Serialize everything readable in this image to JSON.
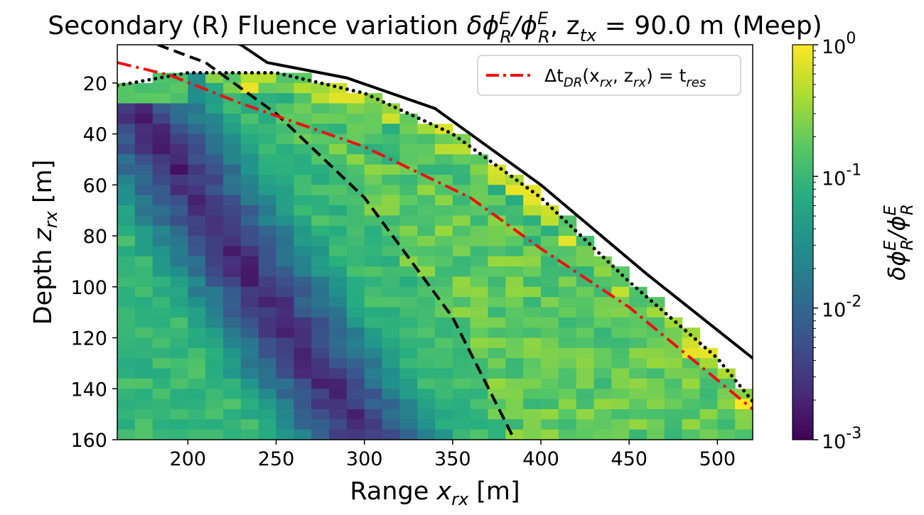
{
  "chart_data": {
    "type": "heatmap",
    "title": {
      "prefix": "Secondary (R) Fluence variation ",
      "math": "δϕ",
      "sup": "E",
      "sub": "R",
      "slash": "/ϕ",
      "mid": ", z",
      "mid_sub": "tx",
      "suffix": " = 90.0 m (Meep)"
    },
    "xlabel": {
      "text": "Range ",
      "var": "x",
      "sub": "rx",
      "unit": " [m]"
    },
    "ylabel": {
      "text": "Depth ",
      "var": "z",
      "sub": "rx",
      "unit": " [m]"
    },
    "xlim": [
      160,
      520
    ],
    "ylim": [
      160,
      5
    ],
    "xticks": [
      200,
      250,
      300,
      350,
      400,
      450,
      500
    ],
    "yticks": [
      20,
      40,
      60,
      80,
      100,
      120,
      140,
      160
    ],
    "cell_size": {
      "dx": 10,
      "dz": 4
    },
    "colorbar": {
      "scale": "log",
      "range": [
        0.001,
        1
      ],
      "tick_exponents": [
        "-3",
        "-2",
        "-1",
        "0"
      ],
      "tick_base": "10",
      "label": {
        "math": "δϕ",
        "sup": "E",
        "sub": "R",
        "slash": "/ϕ",
        "sup2": "E",
        "sub2": "R"
      },
      "colormap": "viridis"
    },
    "legend": {
      "placement": "upper-right",
      "entries": [
        {
          "label_prefix": "Δt",
          "label_sub": "DR",
          "label_mid": "(x",
          "label_sub2": "rx",
          "label_mid2": ", z",
          "label_sub3": "rx",
          "label_mid3": ") = t",
          "label_sub4": "res",
          "color": "#ee1111",
          "style": "dash-dot"
        }
      ]
    },
    "lines": [
      {
        "id": "solid-boundary",
        "color": "#000000",
        "style": "solid",
        "points": [
          [
            215,
            2
          ],
          [
            230,
            5
          ],
          [
            245,
            12
          ],
          [
            290,
            18
          ],
          [
            340,
            30
          ],
          [
            400,
            60
          ],
          [
            460,
            95
          ],
          [
            520,
            128
          ]
        ]
      },
      {
        "id": "dotted-boundary",
        "color": "#000000",
        "style": "dotted",
        "points": [
          [
            160,
            21
          ],
          [
            200,
            16
          ],
          [
            250,
            16
          ],
          [
            300,
            24
          ],
          [
            350,
            40
          ],
          [
            400,
            65
          ],
          [
            450,
            98
          ],
          [
            500,
            128
          ],
          [
            520,
            145
          ]
        ]
      },
      {
        "id": "dashed-direct",
        "color": "#000000",
        "style": "dashed",
        "points": [
          [
            183,
            5
          ],
          [
            210,
            12
          ],
          [
            250,
            32
          ],
          [
            300,
            65
          ],
          [
            350,
            112
          ],
          [
            385,
            160
          ]
        ]
      },
      {
        "id": "dash-dot-tres",
        "color": "#ee1111",
        "style": "dash-dot",
        "points": [
          [
            160,
            12
          ],
          [
            190,
            17
          ],
          [
            230,
            28
          ],
          [
            300,
            45
          ],
          [
            360,
            65
          ],
          [
            400,
            85
          ],
          [
            450,
            108
          ],
          [
            520,
            148
          ]
        ]
      }
    ],
    "field_model": {
      "diagonal_minimum": "log10 value lowest (~-2.7) near z = 45 + 1.0*(x - 185), rising toward -1 away from it",
      "forward_region": "between dashed and dash-dot curves values ~ 0.1-0.3, noisy",
      "edge_band": "bright cells (~0.3-1) just below the dotted boundary",
      "empty": "no cells above the dotted boundary"
    }
  }
}
